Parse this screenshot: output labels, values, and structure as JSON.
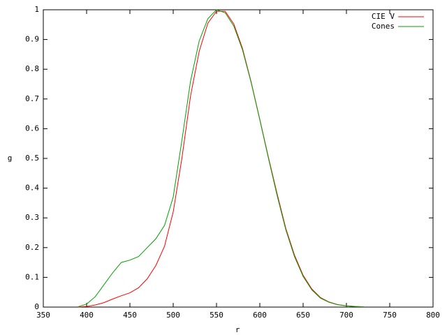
{
  "chart_data": {
    "type": "line",
    "xlabel": "r",
    "ylabel": "g",
    "x": [
      390,
      400,
      410,
      420,
      430,
      440,
      450,
      460,
      470,
      480,
      490,
      500,
      510,
      520,
      530,
      540,
      550,
      560,
      570,
      580,
      590,
      600,
      610,
      620,
      630,
      640,
      650,
      660,
      670,
      680,
      690,
      700,
      710,
      720
    ],
    "series": [
      {
        "name": "CIE V",
        "color": "#ff0000",
        "values": [
          0.0003,
          0.002,
          0.007,
          0.015,
          0.027,
          0.038,
          0.048,
          0.065,
          0.095,
          0.14,
          0.205,
          0.32,
          0.5,
          0.71,
          0.86,
          0.955,
          0.995,
          0.995,
          0.952,
          0.87,
          0.757,
          0.631,
          0.503,
          0.381,
          0.265,
          0.175,
          0.107,
          0.061,
          0.032,
          0.017,
          0.0082,
          0.0041,
          0.0021,
          0.001
        ]
      },
      {
        "name": "Cones",
        "color": "#00a000",
        "values": [
          0.001,
          0.01,
          0.035,
          0.075,
          0.115,
          0.15,
          0.158,
          0.17,
          0.2,
          0.23,
          0.275,
          0.37,
          0.56,
          0.76,
          0.895,
          0.97,
          1.0,
          0.99,
          0.945,
          0.865,
          0.755,
          0.63,
          0.5,
          0.375,
          0.26,
          0.17,
          0.103,
          0.058,
          0.03,
          0.016,
          0.008,
          0.004,
          0.002,
          0.001
        ]
      }
    ],
    "xlim": [
      350,
      800
    ],
    "xticks": [
      350,
      400,
      450,
      500,
      550,
      600,
      650,
      700,
      750,
      800
    ],
    "ylim": [
      0,
      1
    ],
    "yticks": [
      0,
      0.1,
      0.2,
      0.3,
      0.4,
      0.5,
      0.6,
      0.7,
      0.8,
      0.9,
      1
    ],
    "grid": false,
    "legend": "top-right"
  }
}
